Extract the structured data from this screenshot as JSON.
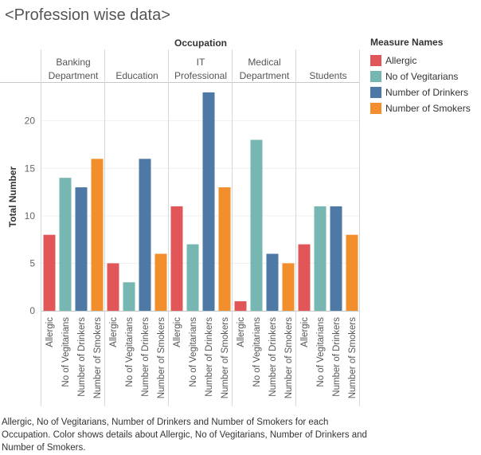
{
  "title": "<Profession wise data>",
  "caption": "Allergic, No of Vegitarians, Number of Drinkers and Number of Smokers for each Occupation.  Color shows details about Allergic, No of Vegitarians, Number of Drinkers and Number of Smokers.",
  "legend": {
    "title": "Measure Names",
    "items": [
      {
        "label": "Allergic",
        "color": "#e15759"
      },
      {
        "label": "No of Vegitarians",
        "color": "#76b7b2"
      },
      {
        "label": "Number of Drinkers",
        "color": "#4e79a7"
      },
      {
        "label": "Number of Smokers",
        "color": "#f28e2b"
      }
    ]
  },
  "chart_data": {
    "type": "bar",
    "column_header": "Occupation",
    "ylabel": "Total Number",
    "ylim": [
      0,
      24
    ],
    "yticks": [
      0,
      5,
      10,
      15,
      20
    ],
    "grid": true,
    "groups": [
      {
        "name": "Banking Department",
        "name_lines": [
          "Banking",
          "Department"
        ],
        "values": [
          8,
          14,
          13,
          16
        ]
      },
      {
        "name": "Education",
        "name_lines": [
          "Education"
        ],
        "values": [
          5,
          3,
          16,
          6
        ]
      },
      {
        "name": "IT Professional",
        "name_lines": [
          "IT",
          "Professional"
        ],
        "values": [
          11,
          7,
          23,
          13
        ]
      },
      {
        "name": "Medical Department",
        "name_lines": [
          "Medical",
          "Department"
        ],
        "values": [
          1,
          18,
          6,
          5
        ]
      },
      {
        "name": "Students",
        "name_lines": [
          "Students"
        ],
        "values": [
          7,
          11,
          11,
          8
        ]
      }
    ],
    "series": [
      {
        "name": "Allergic",
        "color": "#e15759"
      },
      {
        "name": "No of Vegitarians",
        "color": "#76b7b2"
      },
      {
        "name": "Number of Drinkers",
        "color": "#4e79a7"
      },
      {
        "name": "Number of Smokers",
        "color": "#f28e2b"
      }
    ]
  }
}
